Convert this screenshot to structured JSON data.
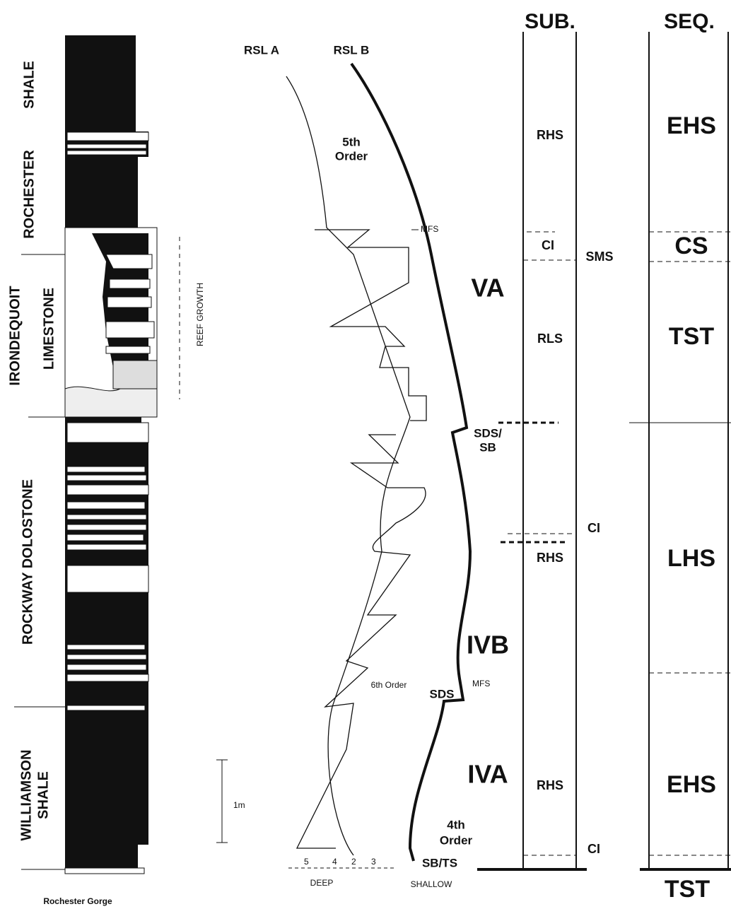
{
  "log": {
    "formations": {
      "shale_top": "SHALE",
      "rochester": "ROCHESTER",
      "irondequoit": "IRONDEQUOIT",
      "limestone": "LIMESTONE",
      "rockway": "ROCKWAY DOLOSTONE",
      "williamson": [
        "WILLIAMSON",
        "SHALE"
      ]
    },
    "reef": "REEF GROWTH",
    "scale": "1m",
    "location": "Rochester Gorge"
  },
  "curves": {
    "rsl_a": "RSL A",
    "rsl_b": "RSL B",
    "fifth_order": [
      "5th",
      "Order"
    ],
    "mfs_upper": "MFS",
    "va": "VA",
    "sds_sb": [
      "SDS/",
      "SB"
    ],
    "ivb": "IVB",
    "sixth_order": "6th Order",
    "sds": "SDS",
    "mfs_lower": "MFS",
    "iva": "IVA",
    "fourth_order": [
      "4th",
      "Order"
    ],
    "sb_ts": "SB/TS",
    "scale_ticks": [
      "5",
      "4",
      "2",
      "3"
    ],
    "deep": "DEEP",
    "shallow": "SHALLOW"
  },
  "sub": {
    "header": "SUB.",
    "units": [
      "RHS",
      "CI",
      "SMS",
      "RLS",
      "RHS",
      "CI",
      "RHS",
      "CI"
    ]
  },
  "seq": {
    "header": "SEQ.",
    "units": [
      "EHS",
      "CS",
      "TST",
      "LHS",
      "EHS",
      "TST"
    ]
  }
}
